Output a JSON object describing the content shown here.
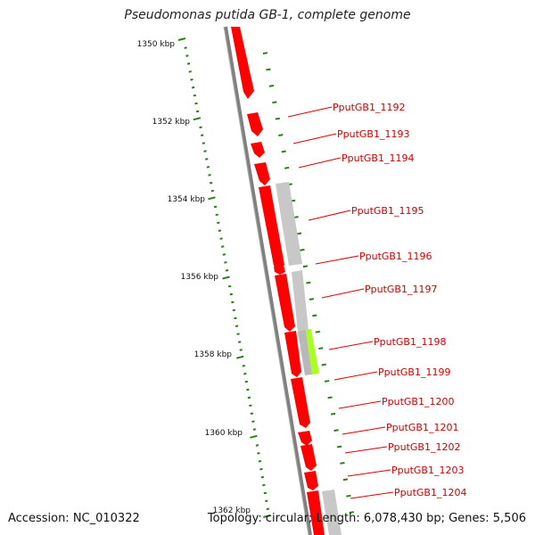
{
  "title": "Pseudomonas putida GB-1, complete genome",
  "accession": "Accession: NC_010322",
  "summary": "Topology: circular; Length: 6,078,430 bp; Genes: 5,506",
  "tick_labels": [
    "1350 kbp",
    "1352 kbp",
    "1354 kbp",
    "1356 kbp",
    "1358 kbp",
    "1360 kbp",
    "1362 kbp"
  ],
  "gene_labels": [
    "PputGB1_1192",
    "PputGB1_1193",
    "PputGB1_1194",
    "PputGB1_1195",
    "PputGB1_1196",
    "PputGB1_1197",
    "PputGB1_1198",
    "PputGB1_1199",
    "PputGB1_1200",
    "PputGB1_1201",
    "PputGB1_1202",
    "PputGB1_1203",
    "PputGB1_1204"
  ],
  "colors": {
    "gene": "#ff0000",
    "gene_label": "#cc0000",
    "backbone": "#808080",
    "tick": "#2e7d1e",
    "feature_gray": "#c8c8c8",
    "feature_green": "#aaff22"
  }
}
